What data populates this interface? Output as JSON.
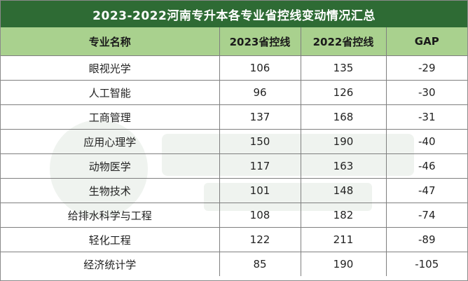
{
  "title": "2023-2022河南专升本各专业省控线变动情况汇总",
  "headers": [
    "专业名称",
    "2023省控线",
    "2022省控线",
    "GAP"
  ],
  "rows": [
    {
      "name": "眼视光学",
      "y2023": "106",
      "y2022": "135",
      "gap": "-29"
    },
    {
      "name": "人工智能",
      "y2023": "96",
      "y2022": "126",
      "gap": "-30"
    },
    {
      "name": "工商管理",
      "y2023": "137",
      "y2022": "168",
      "gap": "-31"
    },
    {
      "name": "应用心理学",
      "y2023": "150",
      "y2022": "190",
      "gap": "-40"
    },
    {
      "name": "动物医学",
      "y2023": "117",
      "y2022": "163",
      "gap": "-46"
    },
    {
      "name": "生物技术",
      "y2023": "101",
      "y2022": "148",
      "gap": "-47"
    },
    {
      "name": "给排水科学与工程",
      "y2023": "108",
      "y2022": "182",
      "gap": "-74"
    },
    {
      "name": "轻化工程",
      "y2023": "122",
      "y2022": "211",
      "gap": "-89"
    },
    {
      "name": "经济统计学",
      "y2023": "85",
      "y2022": "190",
      "gap": "-105"
    }
  ],
  "colors": {
    "title_bg": "#2e6b34",
    "header_bg": "#a9d18e",
    "border": "#7f7f7f"
  }
}
